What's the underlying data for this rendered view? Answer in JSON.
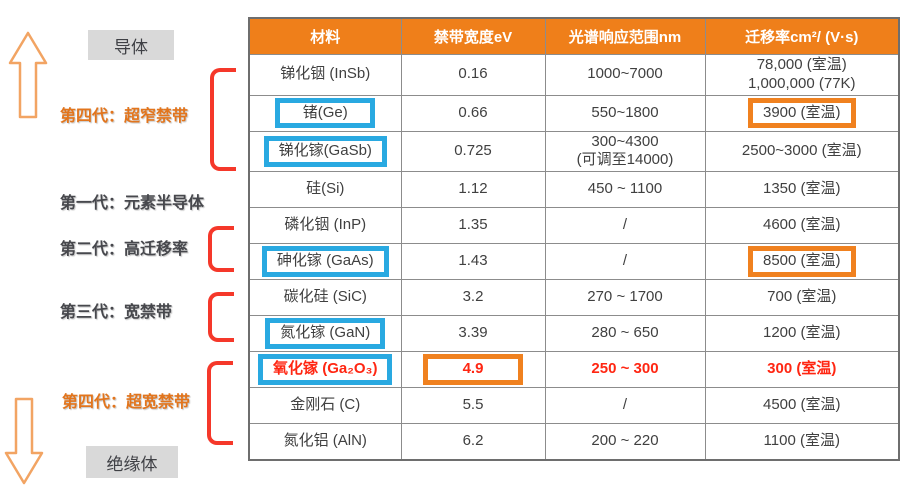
{
  "colors": {
    "header_bg": "#EF7F1A",
    "blue_highlight": "#29A9E1",
    "orange_highlight": "#F0811F",
    "red_text": "#FF2612",
    "bracket_red": "#F5382A",
    "arrow_orange": "#F2A463",
    "gray_label_bg": "#D9D9D9"
  },
  "left_panel": {
    "conductor_label": "导体",
    "insulator_label": "绝缘体",
    "up_arrow_icon": "up-arrow",
    "down_arrow_icon": "down-arrow",
    "generations": [
      {
        "label": "第四代：超窄禁带",
        "emphasis": "orange"
      },
      {
        "label": "第一代：元素半导体",
        "emphasis": "dark"
      },
      {
        "label": "第二代：高迁移率",
        "emphasis": "dark"
      },
      {
        "label": "第三代：宽禁带",
        "emphasis": "dark"
      },
      {
        "label": "第四代：超宽禁带",
        "emphasis": "orange"
      }
    ]
  },
  "table": {
    "headers": [
      "材料",
      "禁带宽度eV",
      "光谱响应范围nm",
      "迁移率cm²/ (V·s)"
    ],
    "rows": [
      {
        "material": "锑化铟 (InSb)",
        "bandgap": "0.16",
        "spectral": "1000~7000",
        "mobility": "78,000 (室温)\n1,000,000 (77K)"
      },
      {
        "material": "锗(Ge)",
        "bandgap": "0.66",
        "spectral": "550~1800",
        "mobility": "3900 (室温)",
        "material_box": "blue",
        "mobility_box": "orange"
      },
      {
        "material": "锑化镓(GaSb)",
        "bandgap": "0.725",
        "spectral": "300~4300\n(可调至14000)",
        "mobility": "2500~3000 (室温)",
        "material_box": "blue"
      },
      {
        "material": "硅(Si)",
        "bandgap": "1.12",
        "spectral": "450 ~ 1100",
        "mobility": "1350 (室温)"
      },
      {
        "material": "磷化铟 (InP)",
        "bandgap": "1.35",
        "spectral": "/",
        "mobility": "4600 (室温)"
      },
      {
        "material": "砷化镓 (GaAs)",
        "bandgap": "1.43",
        "spectral": "/",
        "mobility": "8500 (室温)",
        "material_box": "blue",
        "mobility_box": "orange"
      },
      {
        "material": "碳化硅 (SiC)",
        "bandgap": "3.2",
        "spectral": "270 ~ 1700",
        "mobility": "700 (室温)"
      },
      {
        "material": "氮化镓 (GaN)",
        "bandgap": "3.39",
        "spectral": "280 ~ 650",
        "mobility": "1200 (室温)",
        "material_box": "blue"
      },
      {
        "material": "氧化镓 (Ga₂O₃)",
        "bandgap": "4.9",
        "spectral": "250 ~ 300",
        "mobility": "300 (室温)",
        "material_box": "blue",
        "bandgap_box": "orange",
        "red_text": true
      },
      {
        "material": "金刚石 (C)",
        "bandgap": "5.5",
        "spectral": "/",
        "mobility": "4500 (室温)"
      },
      {
        "material": "氮化铝 (AlN)",
        "bandgap": "6.2",
        "spectral": "200 ~ 220",
        "mobility": "1100 (室温)"
      }
    ]
  }
}
